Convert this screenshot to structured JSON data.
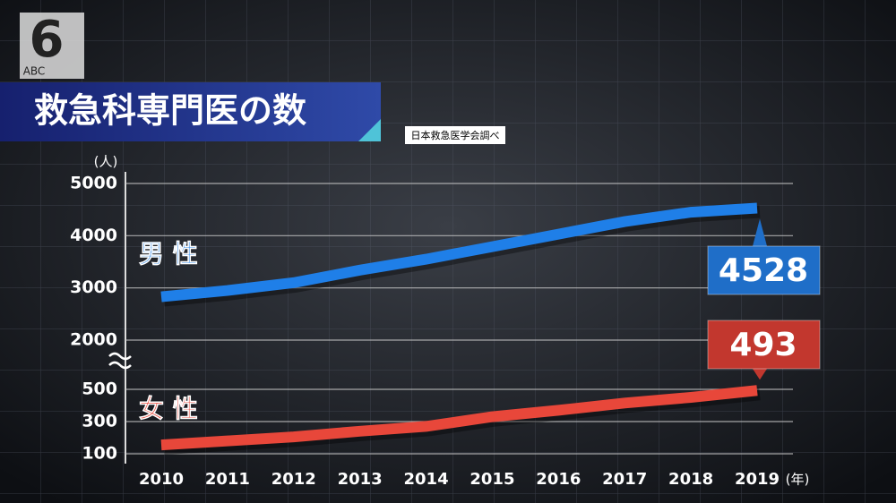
{
  "logo": {
    "number": "6",
    "text": "ABC"
  },
  "chart_data": {
    "type": "line",
    "title": "救急科専門医の数",
    "source": "日本救急医学会調べ",
    "y_unit": "(人)",
    "x_unit": "(年)",
    "categories": [
      "2010",
      "2011",
      "2012",
      "2013",
      "2014",
      "2015",
      "2016",
      "2017",
      "2018",
      "2019"
    ],
    "series": [
      {
        "name": "男 性",
        "color": "#1f7fe8",
        "values": [
          2830,
          2950,
          3100,
          3340,
          3550,
          3790,
          4030,
          4270,
          4450,
          4528
        ]
      },
      {
        "name": "女 性",
        "color": "#e8473a",
        "axis": "y2",
        "values": [
          155,
          180,
          205,
          240,
          270,
          330,
          370,
          415,
          450,
          493
        ]
      }
    ],
    "ylim": [
      2000,
      5000
    ],
    "yticks": [
      2000,
      3000,
      4000,
      5000
    ],
    "y2lim": [
      100,
      500
    ],
    "y2ticks": [
      100,
      300,
      500
    ],
    "grid": true
  }
}
